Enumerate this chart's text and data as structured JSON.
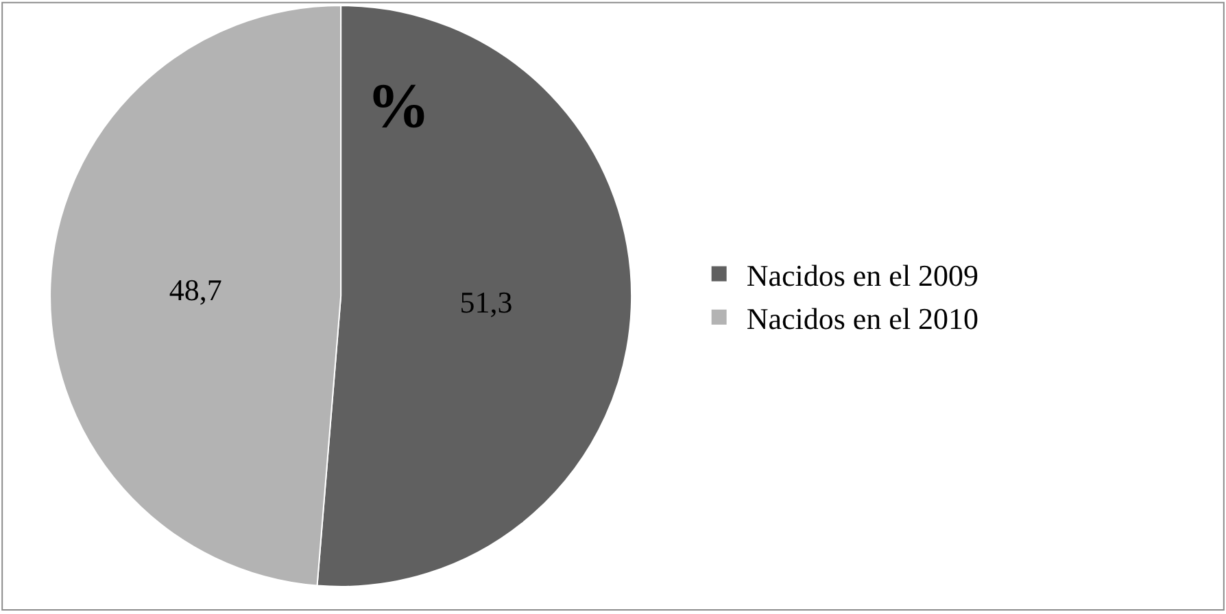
{
  "chart_data": {
    "type": "pie",
    "title": "%",
    "categories": [
      "Nacidos en el 2009",
      "Nacidos en el 2010"
    ],
    "values": [
      51.3,
      48.7
    ],
    "value_labels": [
      "51,3",
      "48,7"
    ],
    "colors": [
      "#606060",
      "#b3b3b3"
    ],
    "legend": "right"
  }
}
